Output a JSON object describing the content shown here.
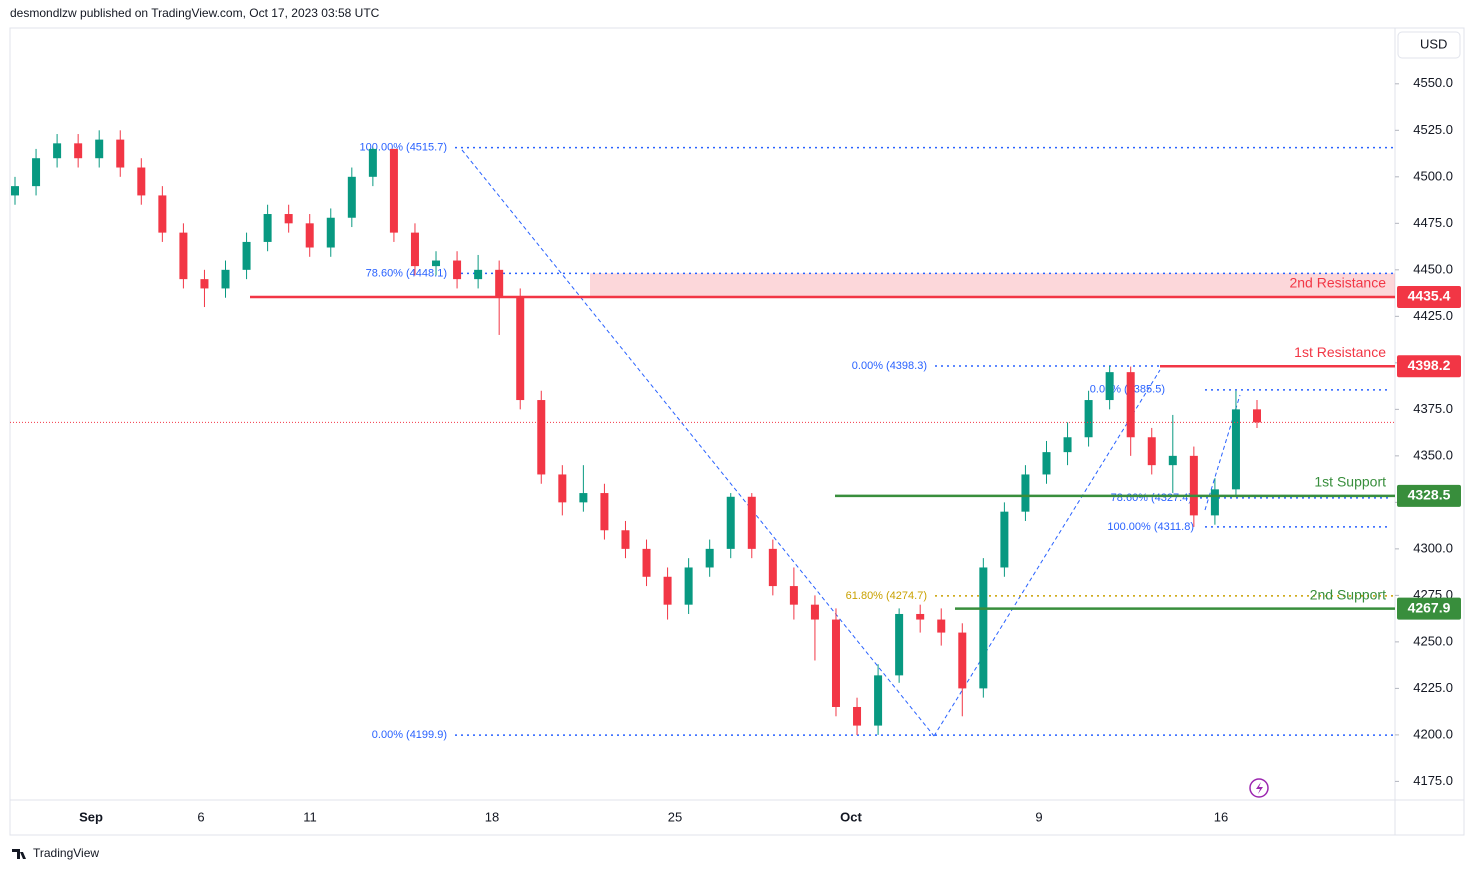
{
  "header": "desmondlzw published on TradingView.com, Oct 17, 2023 03:58 UTC",
  "currency": "USD",
  "footer": "TradingView",
  "chart_data": {
    "type": "candlestick",
    "up_color": "#089981",
    "down_color": "#f23645",
    "ylim": [
      4165,
      4580
    ],
    "yticks": [
      {
        "value": 4175,
        "label": "4175.0"
      },
      {
        "value": 4200,
        "label": "4200.0"
      },
      {
        "value": 4225,
        "label": "4225.0"
      },
      {
        "value": 4250,
        "label": "4250.0"
      },
      {
        "value": 4275,
        "label": "4275.0"
      },
      {
        "value": 4300,
        "label": "4300.0"
      },
      {
        "value": 4325,
        "label": "4325.0"
      },
      {
        "value": 4350,
        "label": "4350.0"
      },
      {
        "value": 4375,
        "label": "4375.0"
      },
      {
        "value": 4400,
        "label": "4400.0"
      },
      {
        "value": 4425,
        "label": "4425.0"
      },
      {
        "value": 4450,
        "label": "4450.0"
      },
      {
        "value": 4475,
        "label": "4475.0"
      },
      {
        "value": 4500,
        "label": "4500.0"
      },
      {
        "value": 4525,
        "label": "4525.0"
      },
      {
        "value": 4550,
        "label": "4550.0"
      }
    ],
    "xlabels": [
      "Sep",
      "6",
      "11",
      "18",
      "25",
      "Oct",
      "9",
      "16"
    ],
    "open": [
      4490,
      4495,
      4510,
      4518,
      4510,
      4520,
      4505,
      4490,
      4470,
      4445,
      4440,
      4450,
      4465,
      4480,
      4475,
      4462,
      4478,
      4500,
      4515,
      4470,
      4452,
      4455,
      4445,
      4450,
      4435,
      4380,
      4340,
      4325,
      4330,
      4310,
      4300,
      4285,
      4270,
      4290,
      4300,
      4328,
      4300,
      4280,
      4270,
      4262,
      4215,
      4205,
      4232,
      4265,
      4262,
      4255,
      4225,
      4290,
      4320,
      4340,
      4352,
      4360,
      4380,
      4395,
      4360,
      4345,
      4350,
      4318,
      4332,
      4375
    ],
    "high": [
      4500,
      4515,
      4523,
      4523,
      4525,
      4525,
      4510,
      4495,
      4475,
      4450,
      4455,
      4470,
      4485,
      4485,
      4480,
      4483,
      4505,
      4515.7,
      4515,
      4475,
      4460,
      4460,
      4458,
      4455,
      4440,
      4385,
      4345,
      4345,
      4335,
      4315,
      4305,
      4290,
      4295,
      4305,
      4330,
      4330,
      4305,
      4290,
      4275,
      4268,
      4220,
      4238,
      4268,
      4270,
      4268,
      4260,
      4295,
      4325,
      4345,
      4358,
      4368,
      4385,
      4398.3,
      4398,
      4365,
      4372,
      4355,
      4338,
      4385,
      4380
    ],
    "low": [
      4485,
      4490,
      4505,
      4505,
      4505,
      4500,
      4485,
      4465,
      4440,
      4430,
      4435,
      4445,
      4460,
      4470,
      4457,
      4457,
      4473,
      4495,
      4465,
      4447,
      4447,
      4440,
      4440,
      4415,
      4375,
      4335,
      4318,
      4320,
      4305,
      4295,
      4280,
      4262,
      4265,
      4285,
      4295,
      4295,
      4275,
      4262,
      4240,
      4210,
      4199.9,
      4200,
      4228,
      4255,
      4248,
      4210,
      4220,
      4285,
      4315,
      4335,
      4345,
      4355,
      4375,
      4350,
      4340,
      4330,
      4311.8,
      4313,
      4328,
      4365
    ],
    "close": [
      4495,
      4510,
      4518,
      4510,
      4520,
      4505,
      4490,
      4470,
      4445,
      4440,
      4450,
      4465,
      4480,
      4475,
      4462,
      4478,
      4500,
      4515,
      4470,
      4452,
      4455,
      4445,
      4450,
      4435,
      4380,
      4340,
      4325,
      4330,
      4310,
      4300,
      4285,
      4270,
      4290,
      4300,
      4328,
      4300,
      4280,
      4270,
      4262,
      4215,
      4205,
      4232,
      4265,
      4262,
      4255,
      4225,
      4290,
      4320,
      4340,
      4352,
      4360,
      4380,
      4395,
      4360,
      4345,
      4350,
      4318,
      4332,
      4375,
      4368
    ],
    "levels": [
      {
        "name": "2nd Resistance",
        "value": 4435.4,
        "color": "#f23645"
      },
      {
        "name": "1st Resistance",
        "value": 4398.2,
        "color": "#f23645"
      },
      {
        "name": "1st Support",
        "value": 4328.5,
        "color": "#388e3c"
      },
      {
        "name": "2nd Support",
        "value": 4267.9,
        "color": "#388e3c"
      }
    ],
    "fib_levels": [
      {
        "label": "100.00% (4515.7)",
        "value": 4515.7,
        "color": "#2962ff"
      },
      {
        "label": "78.60% (4448.1)",
        "value": 4448.1,
        "color": "#2962ff"
      },
      {
        "label": "0.00% (4199.9)",
        "value": 4199.9,
        "color": "#2962ff"
      },
      {
        "label": "0.00% (4398.3)",
        "value": 4398.3,
        "color": "#2962ff"
      },
      {
        "label": "61.80% (4274.7)",
        "value": 4274.7,
        "color": "#c9a100"
      },
      {
        "label": "0.00% (4385.5)",
        "value": 4385.5,
        "color": "#2962ff"
      },
      {
        "label": "78.60% (4327.4)",
        "value": 4327.4,
        "color": "#2962ff"
      },
      {
        "label": "100.00% (4311.8)",
        "value": 4311.8,
        "color": "#2962ff"
      }
    ]
  }
}
